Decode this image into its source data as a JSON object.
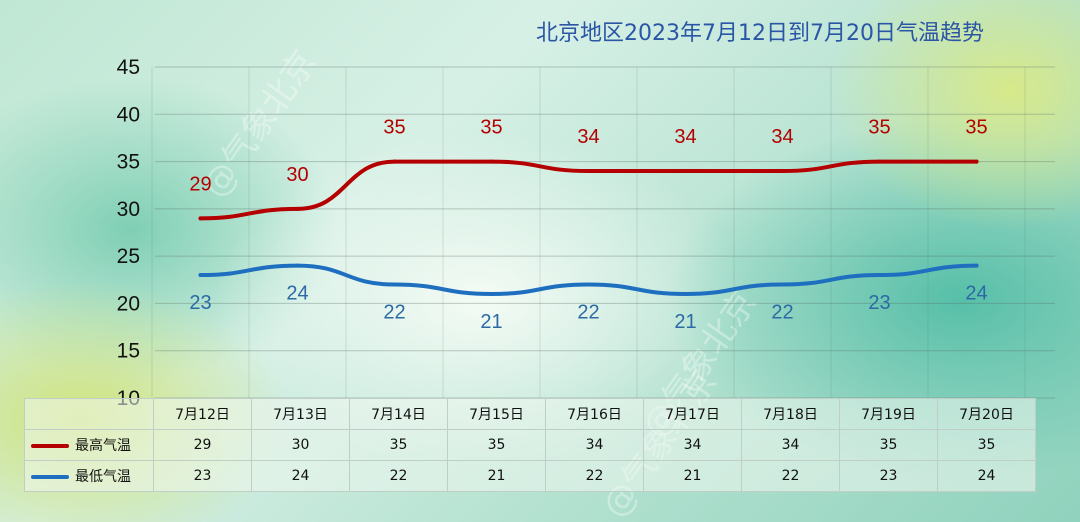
{
  "chart_data": {
    "type": "line",
    "title": "北京地区2023年7月12日到7月20日气温趋势",
    "categories": [
      "7月12日",
      "7月13日",
      "7月14日",
      "7月15日",
      "7月16日",
      "7月17日",
      "7月18日",
      "7月19日",
      "7月20日"
    ],
    "series": [
      {
        "name": "最高气温",
        "values": [
          29,
          30,
          35,
          35,
          34,
          34,
          34,
          35,
          35
        ],
        "color": "#b40000"
      },
      {
        "name": "最低气温",
        "values": [
          23,
          24,
          22,
          21,
          22,
          21,
          22,
          23,
          24
        ],
        "color": "#1f6fc0"
      }
    ],
    "ylim": [
      10,
      45
    ],
    "yticks": [
      "10",
      "15",
      "20",
      "25",
      "30",
      "35",
      "40",
      "45"
    ],
    "grid": true,
    "legend": "data table below chart"
  },
  "watermark": "@气象北京"
}
